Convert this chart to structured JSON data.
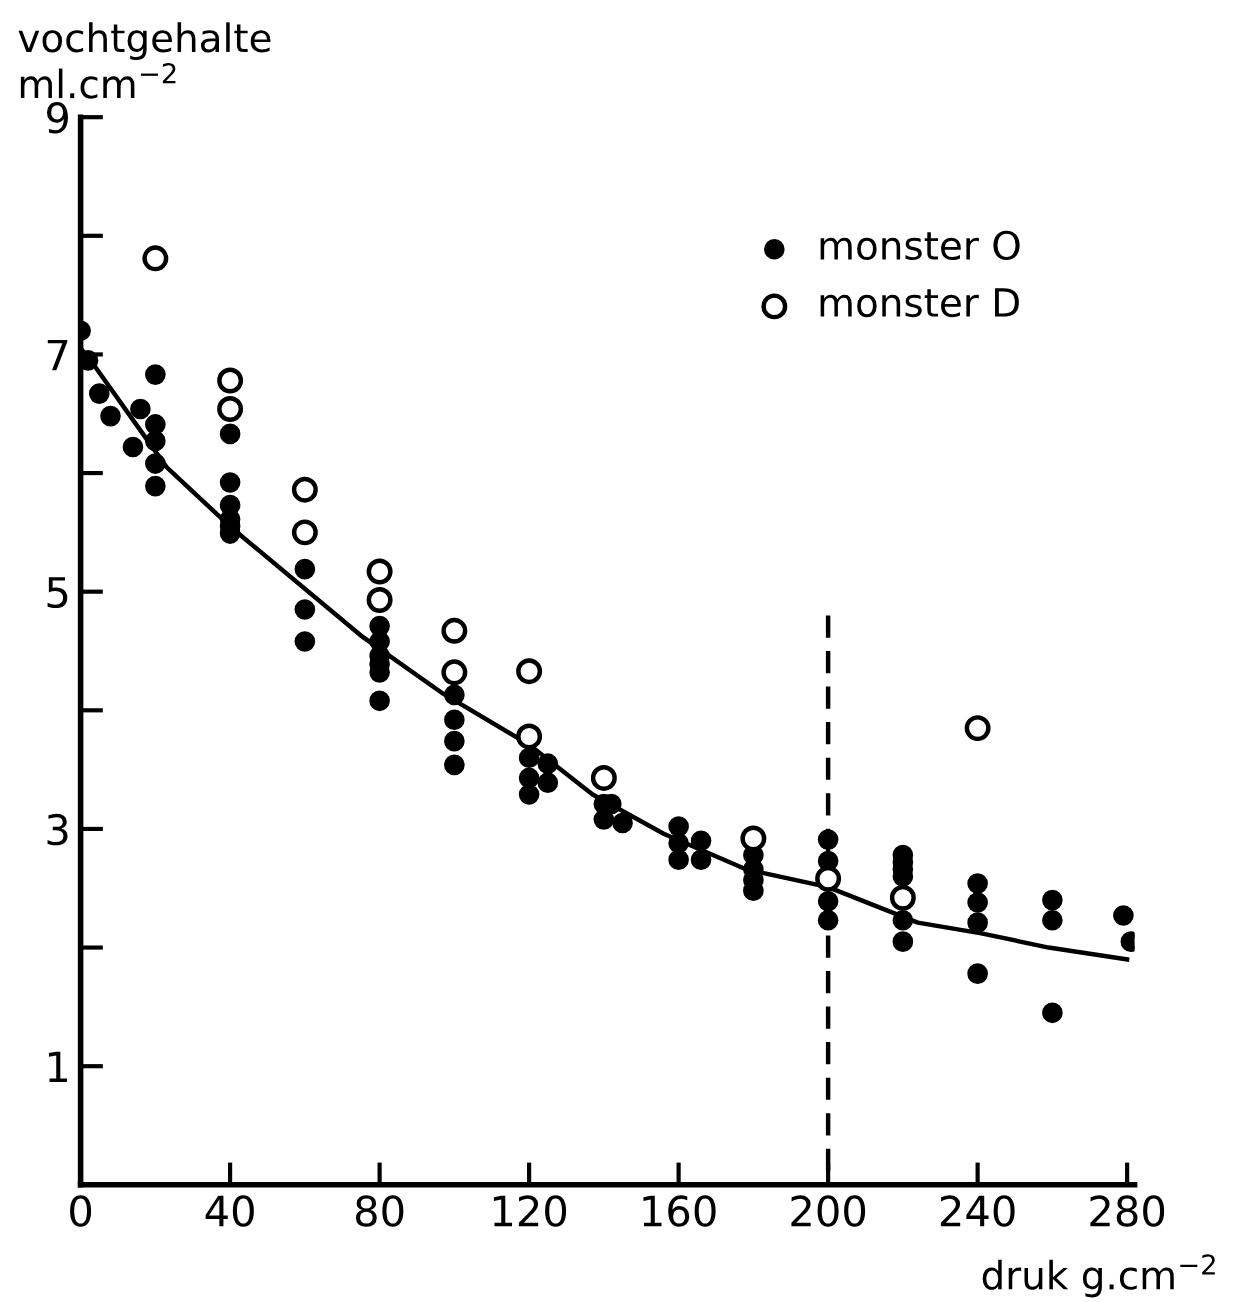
{
  "chart_data": {
    "type": "scatter",
    "ylabel": "vochtgehalte\nml.cm$^{−2}$",
    "xlabel": "druk g.cm$^{−2}$",
    "xlim": [
      0,
      282
    ],
    "xticks": [
      0,
      40,
      80,
      120,
      160,
      200,
      240,
      280
    ],
    "ylim": [
      0,
      9
    ],
    "yticks": [
      1,
      {
        "value": 2,
        "label": null
      },
      3,
      {
        "value": 4,
        "label": null
      },
      5,
      {
        "value": 6,
        "label": null
      },
      7,
      {
        "value": 8,
        "label": null
      },
      9
    ],
    "grid": false,
    "legend": "top right",
    "marker": "circle",
    "series": [
      {
        "name": "monster O",
        "color": "#000000",
        "x": [
          0,
          2,
          5,
          8,
          14,
          16,
          20,
          20,
          20,
          20,
          20,
          40,
          40,
          40,
          40,
          40,
          40,
          60,
          60,
          60,
          80,
          80,
          80,
          80,
          80,
          80,
          100,
          100,
          100,
          100,
          120,
          120,
          120,
          125,
          125,
          140,
          140,
          142,
          145,
          160,
          160,
          160,
          166,
          166,
          180,
          180,
          180,
          180,
          200,
          200,
          200,
          200,
          220,
          220,
          220,
          220,
          220,
          220,
          240,
          240,
          240,
          240,
          260,
          260,
          260,
          279,
          281
        ],
        "values": [
          7.2,
          6.95,
          6.67,
          6.48,
          6.22,
          6.54,
          6.83,
          6.41,
          6.27,
          6.08,
          5.89,
          6.33,
          5.92,
          5.73,
          5.61,
          5.55,
          5.49,
          5.19,
          4.85,
          4.58,
          4.71,
          4.58,
          4.46,
          4.39,
          4.32,
          4.08,
          4.13,
          3.92,
          3.74,
          3.54,
          3.6,
          3.43,
          3.29,
          3.55,
          3.39,
          3.21,
          3.08,
          3.21,
          3.05,
          3.02,
          2.88,
          2.74,
          2.9,
          2.74,
          2.78,
          2.66,
          2.57,
          2.48,
          2.91,
          2.73,
          2.39,
          2.23,
          2.78,
          2.72,
          2.66,
          2.6,
          2.23,
          2.05,
          2.54,
          2.38,
          2.21,
          1.78,
          2.4,
          2.23,
          1.45,
          2.27,
          2.05
        ]
      },
      {
        "name": "monster D",
        "color": "#ffffff",
        "x": [
          20,
          40,
          40,
          60,
          60,
          80,
          80,
          100,
          100,
          120,
          120,
          140,
          180,
          200,
          220,
          240
        ],
        "values": [
          7.81,
          6.78,
          6.54,
          5.86,
          5.5,
          5.17,
          4.93,
          4.67,
          4.32,
          4.33,
          3.78,
          3.43,
          2.92,
          2.58,
          2.42,
          3.85
        ]
      },
      {
        "type": "line",
        "color": "#000000",
        "line_style": "solid",
        "marker": "none",
        "x": [
          0,
          2,
          16,
          23,
          40,
          75,
          97,
          120,
          137,
          156,
          178,
          200,
          224,
          241,
          259,
          280
        ],
        "values": [
          7.05,
          6.98,
          6.36,
          6.05,
          5.55,
          4.63,
          4.14,
          3.71,
          3.29,
          2.96,
          2.66,
          2.51,
          2.21,
          2.12,
          2.0,
          1.9
        ]
      },
      {
        "type": "line",
        "color": "#000000",
        "line_style": "dashed",
        "marker": "none",
        "x": [
          200,
          200
        ],
        "values": [
          4.8,
          0
        ]
      }
    ]
  }
}
